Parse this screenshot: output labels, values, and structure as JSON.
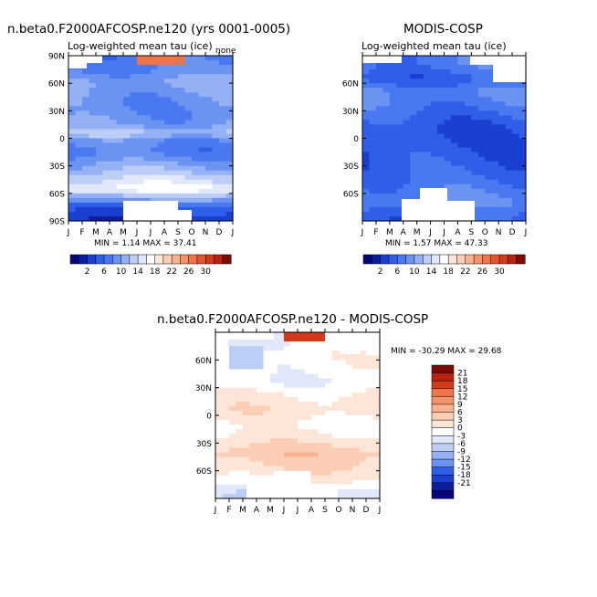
{
  "colors": {
    "abs_scale": [
      "#08057a",
      "#0c1ea0",
      "#1a3fd0",
      "#2f5fe8",
      "#4a78f0",
      "#6b93f2",
      "#93b1f4",
      "#bccdf6",
      "#e0e8fa",
      "#ffffff",
      "#fde5d8",
      "#fbcdb5",
      "#f8b290",
      "#f4936b",
      "#ef744a",
      "#e55530",
      "#d23a1c",
      "#b8220e",
      "#7e0a05"
    ],
    "diff_scale": [
      "#08057a",
      "#0c1ea0",
      "#1a3fd0",
      "#2f5fe8",
      "#6b93f2",
      "#93b1f4",
      "#bccdf6",
      "#e0e8fa",
      "#ffffff",
      "#fde5d8",
      "#fbcdb5",
      "#f8b290",
      "#f4936b",
      "#ef744a",
      "#d23a1c",
      "#b8220e",
      "#7e0a05"
    ]
  },
  "chart_data": [
    {
      "id": "model",
      "type": "heatmap",
      "main_title": "n.beta0.F2000AFCOSP.ne120 (yrs 0001-0005)",
      "subtitle": "Log-weighted mean tau (ice)",
      "units": "none",
      "x_ticks": [
        "J",
        "F",
        "M",
        "A",
        "M",
        "J",
        "J",
        "A",
        "S",
        "O",
        "N",
        "D",
        "J"
      ],
      "y_ticks": [
        "90N",
        "60N",
        "30N",
        "0",
        "30S",
        "60S",
        "90S"
      ],
      "y_range": [
        -90,
        90
      ],
      "stats": "MIN =    1.14 MAX =   37.41",
      "levels": [
        2,
        4,
        6,
        8,
        10,
        12,
        14,
        16,
        18,
        20,
        22,
        24,
        26,
        28,
        30
      ],
      "label_bar": [
        "2",
        "6",
        "10",
        "14",
        "18",
        "22",
        "26",
        "30"
      ],
      "lat_profile": [
        {
          "lat": 90,
          "v": 9
        },
        {
          "lat": 75,
          "v": 10
        },
        {
          "lat": 60,
          "v": 12.5
        },
        {
          "lat": 45,
          "v": 11
        },
        {
          "lat": 30,
          "v": 10.5
        },
        {
          "lat": 15,
          "v": 11.5
        },
        {
          "lat": 5,
          "v": 15
        },
        {
          "lat": 0,
          "v": 11
        },
        {
          "lat": -15,
          "v": 9
        },
        {
          "lat": -30,
          "v": 12.5
        },
        {
          "lat": -45,
          "v": 16
        },
        {
          "lat": -55,
          "v": 19
        },
        {
          "lat": -65,
          "v": 13
        },
        {
          "lat": -75,
          "v": 7
        },
        {
          "lat": -90,
          "v": 4
        }
      ]
    },
    {
      "id": "obs",
      "type": "heatmap",
      "main_title": "MODIS-COSP",
      "subtitle": "Log-weighted mean tau (ice)",
      "x_ticks": [
        "J",
        "F",
        "M",
        "A",
        "M",
        "J",
        "J",
        "A",
        "S",
        "O",
        "N",
        "D",
        "J"
      ],
      "y_ticks": [
        "60N",
        "30N",
        "0",
        "30S",
        "60S"
      ],
      "y_range": [
        -90,
        90
      ],
      "stats": "MIN =    1.57 MAX =   47.33",
      "levels": [
        2,
        4,
        6,
        8,
        10,
        12,
        14,
        16,
        18,
        20,
        22,
        24,
        26,
        28,
        30
      ],
      "label_bar": [
        "2",
        "6",
        "10",
        "14",
        "18",
        "22",
        "26",
        "30"
      ],
      "lat_profile": [
        {
          "lat": 80,
          "v": 9
        },
        {
          "lat": 65,
          "v": 7
        },
        {
          "lat": 50,
          "v": 10
        },
        {
          "lat": 35,
          "v": 9
        },
        {
          "lat": 20,
          "v": 7
        },
        {
          "lat": 5,
          "v": 6
        },
        {
          "lat": -10,
          "v": 6.5
        },
        {
          "lat": -25,
          "v": 7
        },
        {
          "lat": -40,
          "v": 7.5
        },
        {
          "lat": -55,
          "v": 9
        },
        {
          "lat": -70,
          "v": 10
        },
        {
          "lat": -85,
          "v": 7
        }
      ]
    },
    {
      "id": "diff",
      "type": "heatmap",
      "main_title": "n.beta0.F2000AFCOSP.ne120 - MODIS-COSP",
      "x_ticks": [
        "J",
        "F",
        "M",
        "A",
        "M",
        "J",
        "J",
        "A",
        "S",
        "O",
        "N",
        "D",
        "J"
      ],
      "y_ticks": [
        "60N",
        "30N",
        "0",
        "30S",
        "60S"
      ],
      "y_range": [
        -90,
        90
      ],
      "stats": "MIN = -30.29 MAX =   29.68",
      "levels": [
        -21,
        -18,
        -15,
        -12,
        -9,
        -6,
        -3,
        0,
        3,
        6,
        9,
        12,
        15,
        18,
        21
      ],
      "label_bar": [
        "21",
        "18",
        "15",
        "12",
        "9",
        "6",
        "3",
        "0",
        "-3",
        "-6",
        "-9",
        "-12",
        "-15",
        "-18",
        "-21"
      ],
      "lat_profile": [
        {
          "lat": 80,
          "v": 0
        },
        {
          "lat": 65,
          "v": 2
        },
        {
          "lat": 50,
          "v": 1.5
        },
        {
          "lat": 35,
          "v": 0.5
        },
        {
          "lat": 20,
          "v": 4
        },
        {
          "lat": 5,
          "v": 5
        },
        {
          "lat": -10,
          "v": 2
        },
        {
          "lat": -25,
          "v": 4
        },
        {
          "lat": -40,
          "v": 8
        },
        {
          "lat": -55,
          "v": 6
        },
        {
          "lat": -70,
          "v": 3
        },
        {
          "lat": -85,
          "v": -3
        }
      ]
    }
  ]
}
